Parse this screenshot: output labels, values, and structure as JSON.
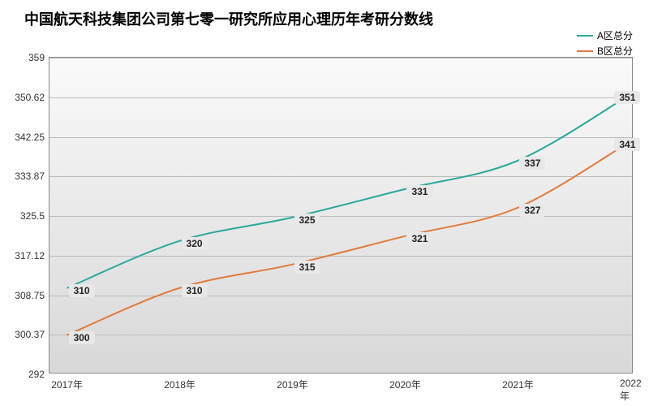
{
  "chart": {
    "type": "line",
    "title": "中国航天科技集团公司第七零一研究所应用心理历年考研分数线",
    "title_fontsize": 18,
    "background_gradient_top": "#fafafa",
    "background_gradient_bottom": "#d8d8d8",
    "grid_color": "#bbbbbb",
    "border_color": "#888888",
    "x_categories": [
      "2017年",
      "2018年",
      "2019年",
      "2020年",
      "2021年",
      "2022年"
    ],
    "y_ticks": [
      "292",
      "300.37",
      "308.75",
      "317.12",
      "325.5",
      "333.87",
      "342.25",
      "350.62",
      "359"
    ],
    "ylim_min": 292,
    "ylim_max": 359,
    "label_fontsize": 12,
    "series": [
      {
        "name": "A区总分",
        "color": "#2aa89a",
        "line_width": 2,
        "values": [
          310,
          320,
          325,
          331,
          337,
          351
        ],
        "labels": [
          "310",
          "320",
          "325",
          "331",
          "337",
          "351"
        ]
      },
      {
        "name": "B区总分",
        "color": "#e07b3c",
        "line_width": 2,
        "values": [
          300,
          310,
          315,
          321,
          327,
          341
        ],
        "labels": [
          "300",
          "310",
          "315",
          "321",
          "327",
          "341"
        ]
      }
    ],
    "legend_position": "top-right"
  }
}
